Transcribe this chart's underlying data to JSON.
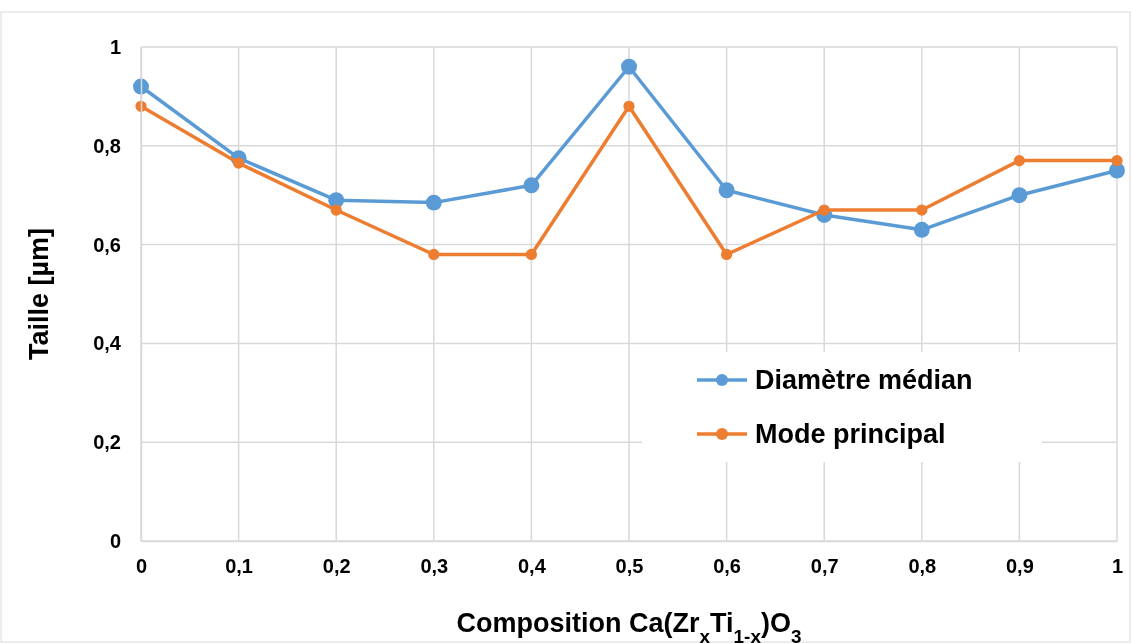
{
  "chart_data": {
    "type": "line",
    "xlabel": "Composition Ca(Zr$_{x}$Ti$_{1-x}$)O$_{3}$",
    "ylabel": "Taille [µm]",
    "x": [
      0,
      0.1,
      0.2,
      0.3,
      0.4,
      0.5,
      0.6,
      0.7,
      0.8,
      0.9,
      1
    ],
    "series": [
      {
        "name": "Diamètre médian",
        "color": "#5b9bd5",
        "values": [
          0.92,
          0.775,
          0.69,
          0.685,
          0.72,
          0.96,
          0.71,
          0.66,
          0.63,
          0.7,
          0.75
        ]
      },
      {
        "name": "Mode principal",
        "color": "#ed7d31",
        "values": [
          0.88,
          0.765,
          0.67,
          0.58,
          0.58,
          0.88,
          0.58,
          0.67,
          0.67,
          0.77,
          0.77
        ]
      }
    ],
    "xlim": [
      0,
      1
    ],
    "ylim": [
      0,
      1
    ],
    "xticks": [
      0,
      {
        "value": 0.1,
        "label": "0,1"
      },
      {
        "value": 0.2,
        "label": "0,2"
      },
      {
        "value": 0.3,
        "label": "0,3"
      },
      {
        "value": 0.4,
        "label": "0,4"
      },
      {
        "value": 0.5,
        "label": "0,5"
      },
      {
        "value": 0.6,
        "label": "0,6"
      },
      {
        "value": 0.7,
        "label": "0,7"
      },
      {
        "value": 0.8,
        "label": "0,8"
      },
      {
        "value": 0.9,
        "label": "0,9"
      },
      1
    ],
    "yticks": [
      0,
      {
        "value": 0.2,
        "label": "0,2"
      },
      {
        "value": 0.4,
        "label": "0,4"
      },
      {
        "value": 0.6,
        "label": "0,6"
      },
      {
        "value": 0.8,
        "label": "0,8"
      },
      1
    ],
    "grid": true,
    "legend": "right",
    "marker": "circle",
    "line_style": "solid"
  }
}
